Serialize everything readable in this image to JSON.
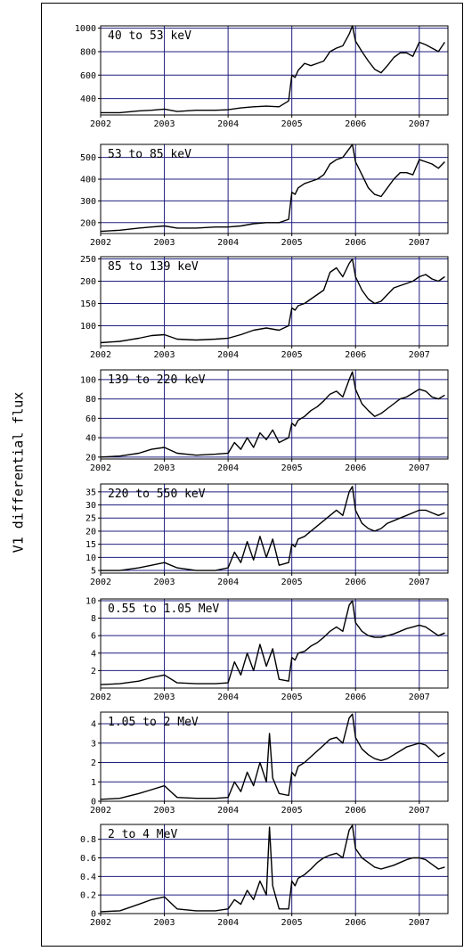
{
  "ylabel": "V1 differential flux",
  "colors": {
    "grid": "#1f1f80",
    "line": "#000000",
    "frame": "#000000"
  },
  "x_ticks": [
    2002,
    2003,
    2004,
    2005,
    2006,
    2007
  ],
  "chart_data": [
    {
      "type": "line",
      "title": "40 to 53 keV",
      "xlim": [
        2002.0,
        2007.45
      ],
      "ylim": [
        260,
        1020
      ],
      "yticks": [
        400,
        600,
        800,
        1000
      ],
      "grid": true,
      "x": [
        2002.0,
        2002.3,
        2002.6,
        2002.8,
        2003.0,
        2003.2,
        2003.5,
        2003.8,
        2004.0,
        2004.2,
        2004.4,
        2004.6,
        2004.8,
        2004.95,
        2005.0,
        2005.05,
        2005.1,
        2005.2,
        2005.3,
        2005.4,
        2005.5,
        2005.6,
        2005.7,
        2005.8,
        2005.9,
        2005.95,
        2006.0,
        2006.1,
        2006.2,
        2006.3,
        2006.4,
        2006.5,
        2006.6,
        2006.7,
        2006.8,
        2006.9,
        2007.0,
        2007.1,
        2007.2,
        2007.3,
        2007.4
      ],
      "y": [
        280,
        280,
        295,
        300,
        310,
        290,
        300,
        300,
        305,
        320,
        330,
        335,
        330,
        380,
        600,
        580,
        640,
        700,
        680,
        700,
        720,
        800,
        830,
        850,
        950,
        1020,
        890,
        800,
        720,
        650,
        620,
        680,
        750,
        790,
        790,
        760,
        880,
        860,
        830,
        800,
        880
      ]
    },
    {
      "type": "line",
      "title": "53 to 85 keV",
      "xlim": [
        2002.0,
        2007.45
      ],
      "ylim": [
        150,
        560
      ],
      "yticks": [
        200,
        300,
        400,
        500
      ],
      "grid": true,
      "x": [
        2002.0,
        2002.3,
        2002.6,
        2002.8,
        2003.0,
        2003.2,
        2003.5,
        2003.8,
        2004.0,
        2004.2,
        2004.4,
        2004.6,
        2004.8,
        2004.95,
        2005.0,
        2005.05,
        2005.1,
        2005.2,
        2005.3,
        2005.4,
        2005.5,
        2005.6,
        2005.7,
        2005.8,
        2005.9,
        2005.95,
        2006.0,
        2006.1,
        2006.2,
        2006.3,
        2006.4,
        2006.5,
        2006.6,
        2006.7,
        2006.8,
        2006.9,
        2007.0,
        2007.1,
        2007.2,
        2007.3,
        2007.4
      ],
      "y": [
        160,
        165,
        175,
        180,
        185,
        175,
        175,
        180,
        180,
        185,
        195,
        200,
        200,
        215,
        340,
        330,
        360,
        380,
        390,
        400,
        420,
        470,
        490,
        500,
        540,
        560,
        480,
        420,
        360,
        330,
        320,
        360,
        400,
        430,
        430,
        420,
        490,
        480,
        470,
        450,
        480
      ]
    },
    {
      "type": "line",
      "title": "85 to 139 keV",
      "xlim": [
        2002.0,
        2007.45
      ],
      "ylim": [
        55,
        255
      ],
      "yticks": [
        100,
        150,
        200,
        250
      ],
      "grid": true,
      "x": [
        2002.0,
        2002.3,
        2002.6,
        2002.8,
        2003.0,
        2003.2,
        2003.5,
        2003.8,
        2004.0,
        2004.2,
        2004.4,
        2004.6,
        2004.8,
        2004.95,
        2005.0,
        2005.05,
        2005.1,
        2005.2,
        2005.3,
        2005.4,
        2005.5,
        2005.6,
        2005.7,
        2005.8,
        2005.9,
        2005.95,
        2006.0,
        2006.1,
        2006.2,
        2006.3,
        2006.4,
        2006.5,
        2006.6,
        2006.7,
        2006.8,
        2006.9,
        2007.0,
        2007.1,
        2007.2,
        2007.3,
        2007.4
      ],
      "y": [
        62,
        65,
        72,
        78,
        80,
        70,
        68,
        70,
        72,
        80,
        90,
        95,
        90,
        100,
        140,
        135,
        145,
        150,
        160,
        170,
        180,
        220,
        230,
        210,
        240,
        250,
        210,
        180,
        160,
        150,
        155,
        170,
        185,
        190,
        195,
        200,
        210,
        215,
        205,
        200,
        210
      ]
    },
    {
      "type": "line",
      "title": "139 to 220 keV",
      "xlim": [
        2002.0,
        2007.45
      ],
      "ylim": [
        18,
        110
      ],
      "yticks": [
        20,
        40,
        60,
        80,
        100
      ],
      "grid": true,
      "x": [
        2002.0,
        2002.3,
        2002.6,
        2002.8,
        2003.0,
        2003.2,
        2003.5,
        2003.8,
        2004.0,
        2004.1,
        2004.2,
        2004.3,
        2004.4,
        2004.5,
        2004.6,
        2004.7,
        2004.8,
        2004.95,
        2005.0,
        2005.05,
        2005.1,
        2005.2,
        2005.3,
        2005.4,
        2005.5,
        2005.6,
        2005.7,
        2005.8,
        2005.9,
        2005.95,
        2006.0,
        2006.1,
        2006.2,
        2006.3,
        2006.4,
        2006.5,
        2006.6,
        2006.7,
        2006.8,
        2006.9,
        2007.0,
        2007.1,
        2007.2,
        2007.3,
        2007.4
      ],
      "y": [
        20,
        21,
        24,
        28,
        30,
        24,
        22,
        23,
        24,
        35,
        28,
        40,
        30,
        45,
        38,
        48,
        35,
        40,
        55,
        52,
        58,
        62,
        68,
        72,
        78,
        85,
        88,
        82,
        100,
        108,
        90,
        75,
        68,
        62,
        65,
        70,
        75,
        80,
        82,
        86,
        90,
        88,
        82,
        80,
        84
      ]
    },
    {
      "type": "line",
      "title": "220 to 550 keV",
      "xlim": [
        2002.0,
        2007.45
      ],
      "ylim": [
        4,
        38
      ],
      "yticks": [
        5,
        10,
        15,
        20,
        25,
        30,
        35
      ],
      "grid": true,
      "x": [
        2002.0,
        2002.3,
        2002.6,
        2002.8,
        2003.0,
        2003.2,
        2003.5,
        2003.8,
        2004.0,
        2004.1,
        2004.2,
        2004.3,
        2004.4,
        2004.5,
        2004.6,
        2004.7,
        2004.8,
        2004.95,
        2005.0,
        2005.05,
        2005.1,
        2005.2,
        2005.3,
        2005.4,
        2005.5,
        2005.6,
        2005.7,
        2005.8,
        2005.9,
        2005.95,
        2006.0,
        2006.1,
        2006.2,
        2006.3,
        2006.4,
        2006.5,
        2006.6,
        2006.7,
        2006.8,
        2006.9,
        2007.0,
        2007.1,
        2007.2,
        2007.3,
        2007.4
      ],
      "y": [
        5,
        5,
        6,
        7,
        8,
        6,
        5,
        5,
        6,
        12,
        8,
        16,
        9,
        18,
        10,
        17,
        7,
        8,
        15,
        14,
        17,
        18,
        20,
        22,
        24,
        26,
        28,
        26,
        35,
        37,
        28,
        23,
        21,
        20,
        21,
        23,
        24,
        25,
        26,
        27,
        28,
        28,
        27,
        26,
        27
      ]
    },
    {
      "type": "line",
      "title": "0.55 to 1.05 MeV",
      "xlim": [
        2002.0,
        2007.45
      ],
      "ylim": [
        0,
        10.2
      ],
      "yticks": [
        2,
        4,
        6,
        8,
        10
      ],
      "grid": true,
      "x": [
        2002.0,
        2002.3,
        2002.6,
        2002.8,
        2003.0,
        2003.2,
        2003.5,
        2003.8,
        2004.0,
        2004.1,
        2004.2,
        2004.3,
        2004.4,
        2004.5,
        2004.6,
        2004.7,
        2004.8,
        2004.95,
        2005.0,
        2005.05,
        2005.1,
        2005.2,
        2005.3,
        2005.4,
        2005.5,
        2005.6,
        2005.7,
        2005.8,
        2005.9,
        2005.95,
        2006.0,
        2006.1,
        2006.2,
        2006.3,
        2006.4,
        2006.5,
        2006.6,
        2006.7,
        2006.8,
        2006.9,
        2007.0,
        2007.1,
        2007.2,
        2007.3,
        2007.4
      ],
      "y": [
        0.4,
        0.5,
        0.8,
        1.2,
        1.5,
        0.6,
        0.5,
        0.5,
        0.6,
        3.0,
        1.5,
        4.0,
        2.0,
        5.0,
        2.5,
        4.5,
        1.0,
        0.8,
        3.5,
        3.2,
        4.0,
        4.2,
        4.8,
        5.2,
        5.8,
        6.5,
        7.0,
        6.5,
        9.5,
        10.0,
        7.5,
        6.5,
        6.0,
        5.8,
        5.8,
        6.0,
        6.2,
        6.5,
        6.8,
        7.0,
        7.2,
        7.0,
        6.5,
        6.0,
        6.3
      ]
    },
    {
      "type": "line",
      "title": "1.05 to 2 MeV",
      "xlim": [
        2002.0,
        2007.45
      ],
      "ylim": [
        0,
        4.6
      ],
      "yticks": [
        0,
        1,
        2,
        3,
        4
      ],
      "grid": true,
      "x": [
        2002.0,
        2002.3,
        2002.6,
        2002.8,
        2003.0,
        2003.2,
        2003.5,
        2003.8,
        2004.0,
        2004.1,
        2004.2,
        2004.3,
        2004.4,
        2004.5,
        2004.6,
        2004.65,
        2004.7,
        2004.8,
        2004.95,
        2005.0,
        2005.05,
        2005.1,
        2005.2,
        2005.3,
        2005.4,
        2005.5,
        2005.6,
        2005.7,
        2005.8,
        2005.9,
        2005.95,
        2006.0,
        2006.1,
        2006.2,
        2006.3,
        2006.4,
        2006.5,
        2006.6,
        2006.7,
        2006.8,
        2006.9,
        2007.0,
        2007.1,
        2007.2,
        2007.3,
        2007.4
      ],
      "y": [
        0.1,
        0.15,
        0.4,
        0.6,
        0.8,
        0.2,
        0.15,
        0.15,
        0.2,
        1.0,
        0.5,
        1.5,
        0.8,
        2.0,
        1.0,
        3.5,
        1.2,
        0.4,
        0.3,
        1.5,
        1.3,
        1.8,
        2.0,
        2.3,
        2.6,
        2.9,
        3.2,
        3.3,
        3.0,
        4.3,
        4.5,
        3.3,
        2.7,
        2.4,
        2.2,
        2.1,
        2.2,
        2.4,
        2.6,
        2.8,
        2.9,
        3.0,
        2.9,
        2.6,
        2.3,
        2.5
      ]
    },
    {
      "type": "line",
      "title": "2 to 4 MeV",
      "xlim": [
        2002.0,
        2007.45
      ],
      "ylim": [
        0,
        0.96
      ],
      "yticks": [
        0,
        0.2,
        0.4,
        0.6,
        0.8
      ],
      "grid": true,
      "x": [
        2002.0,
        2002.3,
        2002.6,
        2002.8,
        2003.0,
        2003.2,
        2003.5,
        2003.8,
        2004.0,
        2004.1,
        2004.2,
        2004.3,
        2004.4,
        2004.5,
        2004.6,
        2004.65,
        2004.7,
        2004.8,
        2004.95,
        2005.0,
        2005.05,
        2005.1,
        2005.2,
        2005.3,
        2005.4,
        2005.5,
        2005.6,
        2005.7,
        2005.8,
        2005.9,
        2005.95,
        2006.0,
        2006.1,
        2006.2,
        2006.3,
        2006.4,
        2006.5,
        2006.6,
        2006.7,
        2006.8,
        2006.9,
        2007.0,
        2007.1,
        2007.2,
        2007.3,
        2007.4
      ],
      "y": [
        0.02,
        0.03,
        0.1,
        0.15,
        0.18,
        0.05,
        0.03,
        0.03,
        0.05,
        0.15,
        0.1,
        0.25,
        0.15,
        0.35,
        0.2,
        0.93,
        0.3,
        0.05,
        0.05,
        0.35,
        0.3,
        0.38,
        0.42,
        0.48,
        0.55,
        0.6,
        0.63,
        0.65,
        0.6,
        0.9,
        0.95,
        0.7,
        0.6,
        0.55,
        0.5,
        0.48,
        0.5,
        0.52,
        0.55,
        0.58,
        0.6,
        0.6,
        0.58,
        0.53,
        0.48,
        0.5
      ]
    }
  ]
}
